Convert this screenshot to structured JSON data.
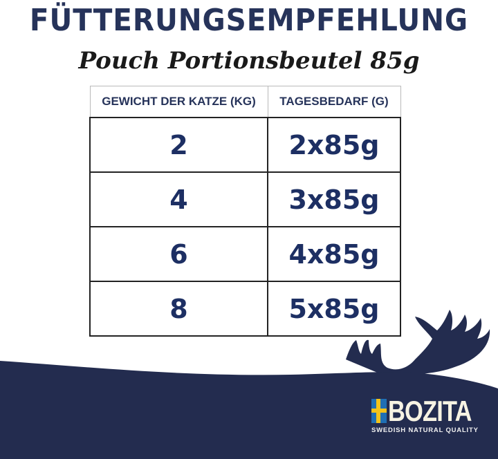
{
  "title": "FÜTTERUNGSEMPFEHLUNG",
  "subtitle": "Pouch Portionsbeutel 85g",
  "table": {
    "headers": [
      "GEWICHT DER KATZE (KG)",
      "TAGESBEDARF (G)"
    ],
    "rows": [
      [
        "2",
        "2x85g"
      ],
      [
        "4",
        "3x85g"
      ],
      [
        "6",
        "4x85g"
      ],
      [
        "8",
        "5x85g"
      ]
    ]
  },
  "brand": {
    "name": "BOZITA",
    "tagline": "SWEDISH NATURAL QUALITY",
    "icon": "swedish-flag-icon"
  },
  "colors": {
    "navy": "#232c4f",
    "text": "#1d2f63",
    "flag_blue": "#1f6fb4",
    "flag_yellow": "#f2c31a"
  }
}
